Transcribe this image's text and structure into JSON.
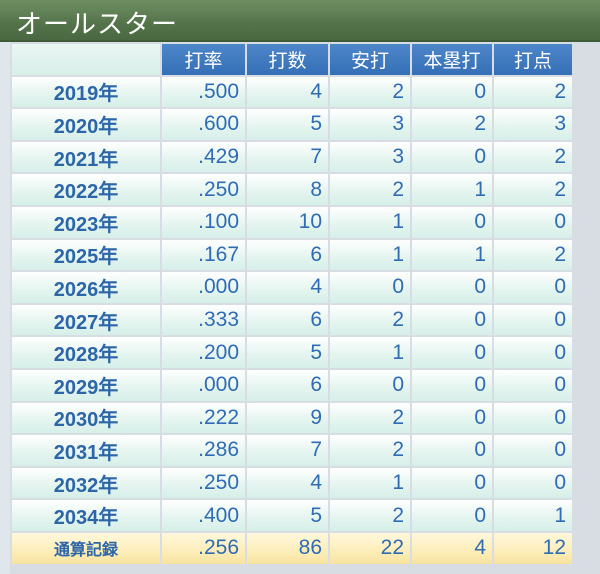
{
  "title": "オールスター",
  "headers": [
    "打率",
    "打数",
    "安打",
    "本塁打",
    "打点"
  ],
  "rows": [
    {
      "year": "2019年",
      "avg": ".500",
      "ab": "4",
      "hits": "2",
      "hr": "0",
      "rbi": "2"
    },
    {
      "year": "2020年",
      "avg": ".600",
      "ab": "5",
      "hits": "3",
      "hr": "2",
      "rbi": "3"
    },
    {
      "year": "2021年",
      "avg": ".429",
      "ab": "7",
      "hits": "3",
      "hr": "0",
      "rbi": "2"
    },
    {
      "year": "2022年",
      "avg": ".250",
      "ab": "8",
      "hits": "2",
      "hr": "1",
      "rbi": "2"
    },
    {
      "year": "2023年",
      "avg": ".100",
      "ab": "10",
      "hits": "1",
      "hr": "0",
      "rbi": "0"
    },
    {
      "year": "2025年",
      "avg": ".167",
      "ab": "6",
      "hits": "1",
      "hr": "1",
      "rbi": "2"
    },
    {
      "year": "2026年",
      "avg": ".000",
      "ab": "4",
      "hits": "0",
      "hr": "0",
      "rbi": "0"
    },
    {
      "year": "2027年",
      "avg": ".333",
      "ab": "6",
      "hits": "2",
      "hr": "0",
      "rbi": "0"
    },
    {
      "year": "2028年",
      "avg": ".200",
      "ab": "5",
      "hits": "1",
      "hr": "0",
      "rbi": "0"
    },
    {
      "year": "2029年",
      "avg": ".000",
      "ab": "6",
      "hits": "0",
      "hr": "0",
      "rbi": "0"
    },
    {
      "year": "2030年",
      "avg": ".222",
      "ab": "9",
      "hits": "2",
      "hr": "0",
      "rbi": "0"
    },
    {
      "year": "2031年",
      "avg": ".286",
      "ab": "7",
      "hits": "2",
      "hr": "0",
      "rbi": "0"
    },
    {
      "year": "2032年",
      "avg": ".250",
      "ab": "4",
      "hits": "1",
      "hr": "0",
      "rbi": "0"
    },
    {
      "year": "2034年",
      "avg": ".400",
      "ab": "5",
      "hits": "2",
      "hr": "0",
      "rbi": "1"
    }
  ],
  "total": {
    "label": "通算記録",
    "avg": ".256",
    "ab": "86",
    "hits": "22",
    "hr": "4",
    "rbi": "12"
  }
}
